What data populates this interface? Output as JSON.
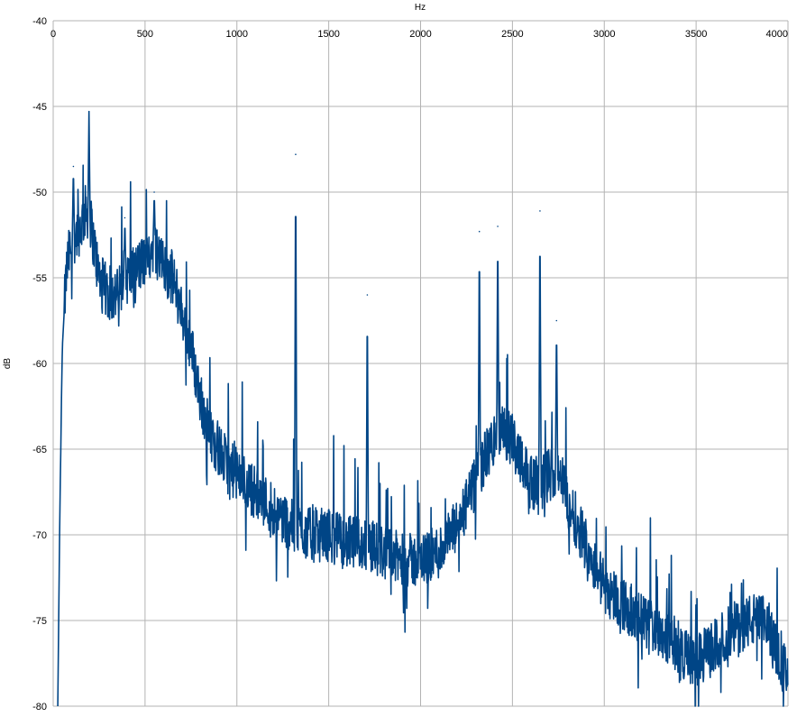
{
  "chart_data": {
    "type": "line",
    "title": "",
    "xlabel": "Hz",
    "ylabel": "dB",
    "xlim": [
      0,
      4000
    ],
    "ylim": [
      -80,
      -40
    ],
    "x_ticks": [
      0,
      500,
      1000,
      1500,
      2000,
      2500,
      3000,
      3500,
      4000
    ],
    "y_ticks": [
      -40,
      -45,
      -50,
      -55,
      -60,
      -65,
      -70,
      -75,
      -80
    ],
    "x_tick_labels": [
      "0",
      "500",
      "1000",
      "1500",
      "2000",
      "2500",
      "3000",
      "3500",
      "4000"
    ],
    "y_tick_labels": [
      "-40",
      "-45",
      "-50",
      "-55",
      "-60",
      "-65",
      "-70",
      "-75",
      "-80"
    ],
    "grid": true,
    "legend": "none",
    "line_color": "#004586",
    "grid_color": "#b3b3b3",
    "series": [
      {
        "x": [
          25,
          30,
          35,
          40,
          45,
          50,
          60,
          70,
          80,
          100,
          120,
          150,
          180,
          200,
          250,
          300,
          350,
          400,
          450,
          500,
          550,
          600,
          650,
          700,
          750,
          800,
          850,
          900,
          950,
          1000,
          1050,
          1100,
          1150,
          1200,
          1250,
          1300,
          1400,
          1500,
          1600,
          1700,
          1800,
          1900,
          2000,
          2100,
          2200,
          2300,
          2350,
          2400,
          2450,
          2500,
          2550,
          2600,
          2650,
          2700,
          2750,
          2800,
          2900,
          3000,
          3100,
          3200,
          3300,
          3400,
          3500,
          3600,
          3700,
          3800,
          3850,
          3900,
          3950,
          4000
        ],
        "values": [
          -80,
          -75,
          -70,
          -66,
          -62,
          -59,
          -57,
          -55,
          -54,
          -53,
          -52.5,
          -52,
          -51,
          -51.5,
          -55,
          -56,
          -56,
          -55,
          -54.5,
          -54,
          -53,
          -54.5,
          -55,
          -57,
          -59,
          -62,
          -64,
          -65,
          -66,
          -66.5,
          -67,
          -67.5,
          -68,
          -68.5,
          -69,
          -69.5,
          -70,
          -70,
          -70.5,
          -70.5,
          -71,
          -71.5,
          -71.5,
          -71,
          -69.5,
          -67,
          -65.5,
          -64.5,
          -64,
          -64.5,
          -65.5,
          -67,
          -67,
          -66.5,
          -66,
          -68,
          -70.5,
          -73,
          -74,
          -75,
          -75.5,
          -76.5,
          -77.5,
          -76.5,
          -75.5,
          -75,
          -75,
          -75.5,
          -77,
          -78.5
        ]
      }
    ],
    "peaks": [
      {
        "x": 110,
        "y": -48.5
      },
      {
        "x": 195,
        "y": -45.3
      },
      {
        "x": 390,
        "y": -51.5
      },
      {
        "x": 550,
        "y": -50
      },
      {
        "x": 1320,
        "y": -47.8
      },
      {
        "x": 1710,
        "y": -56
      },
      {
        "x": 2320,
        "y": -52.3
      },
      {
        "x": 2420,
        "y": -52
      },
      {
        "x": 2650,
        "y": -51.1
      },
      {
        "x": 2740,
        "y": -57.5
      }
    ]
  }
}
